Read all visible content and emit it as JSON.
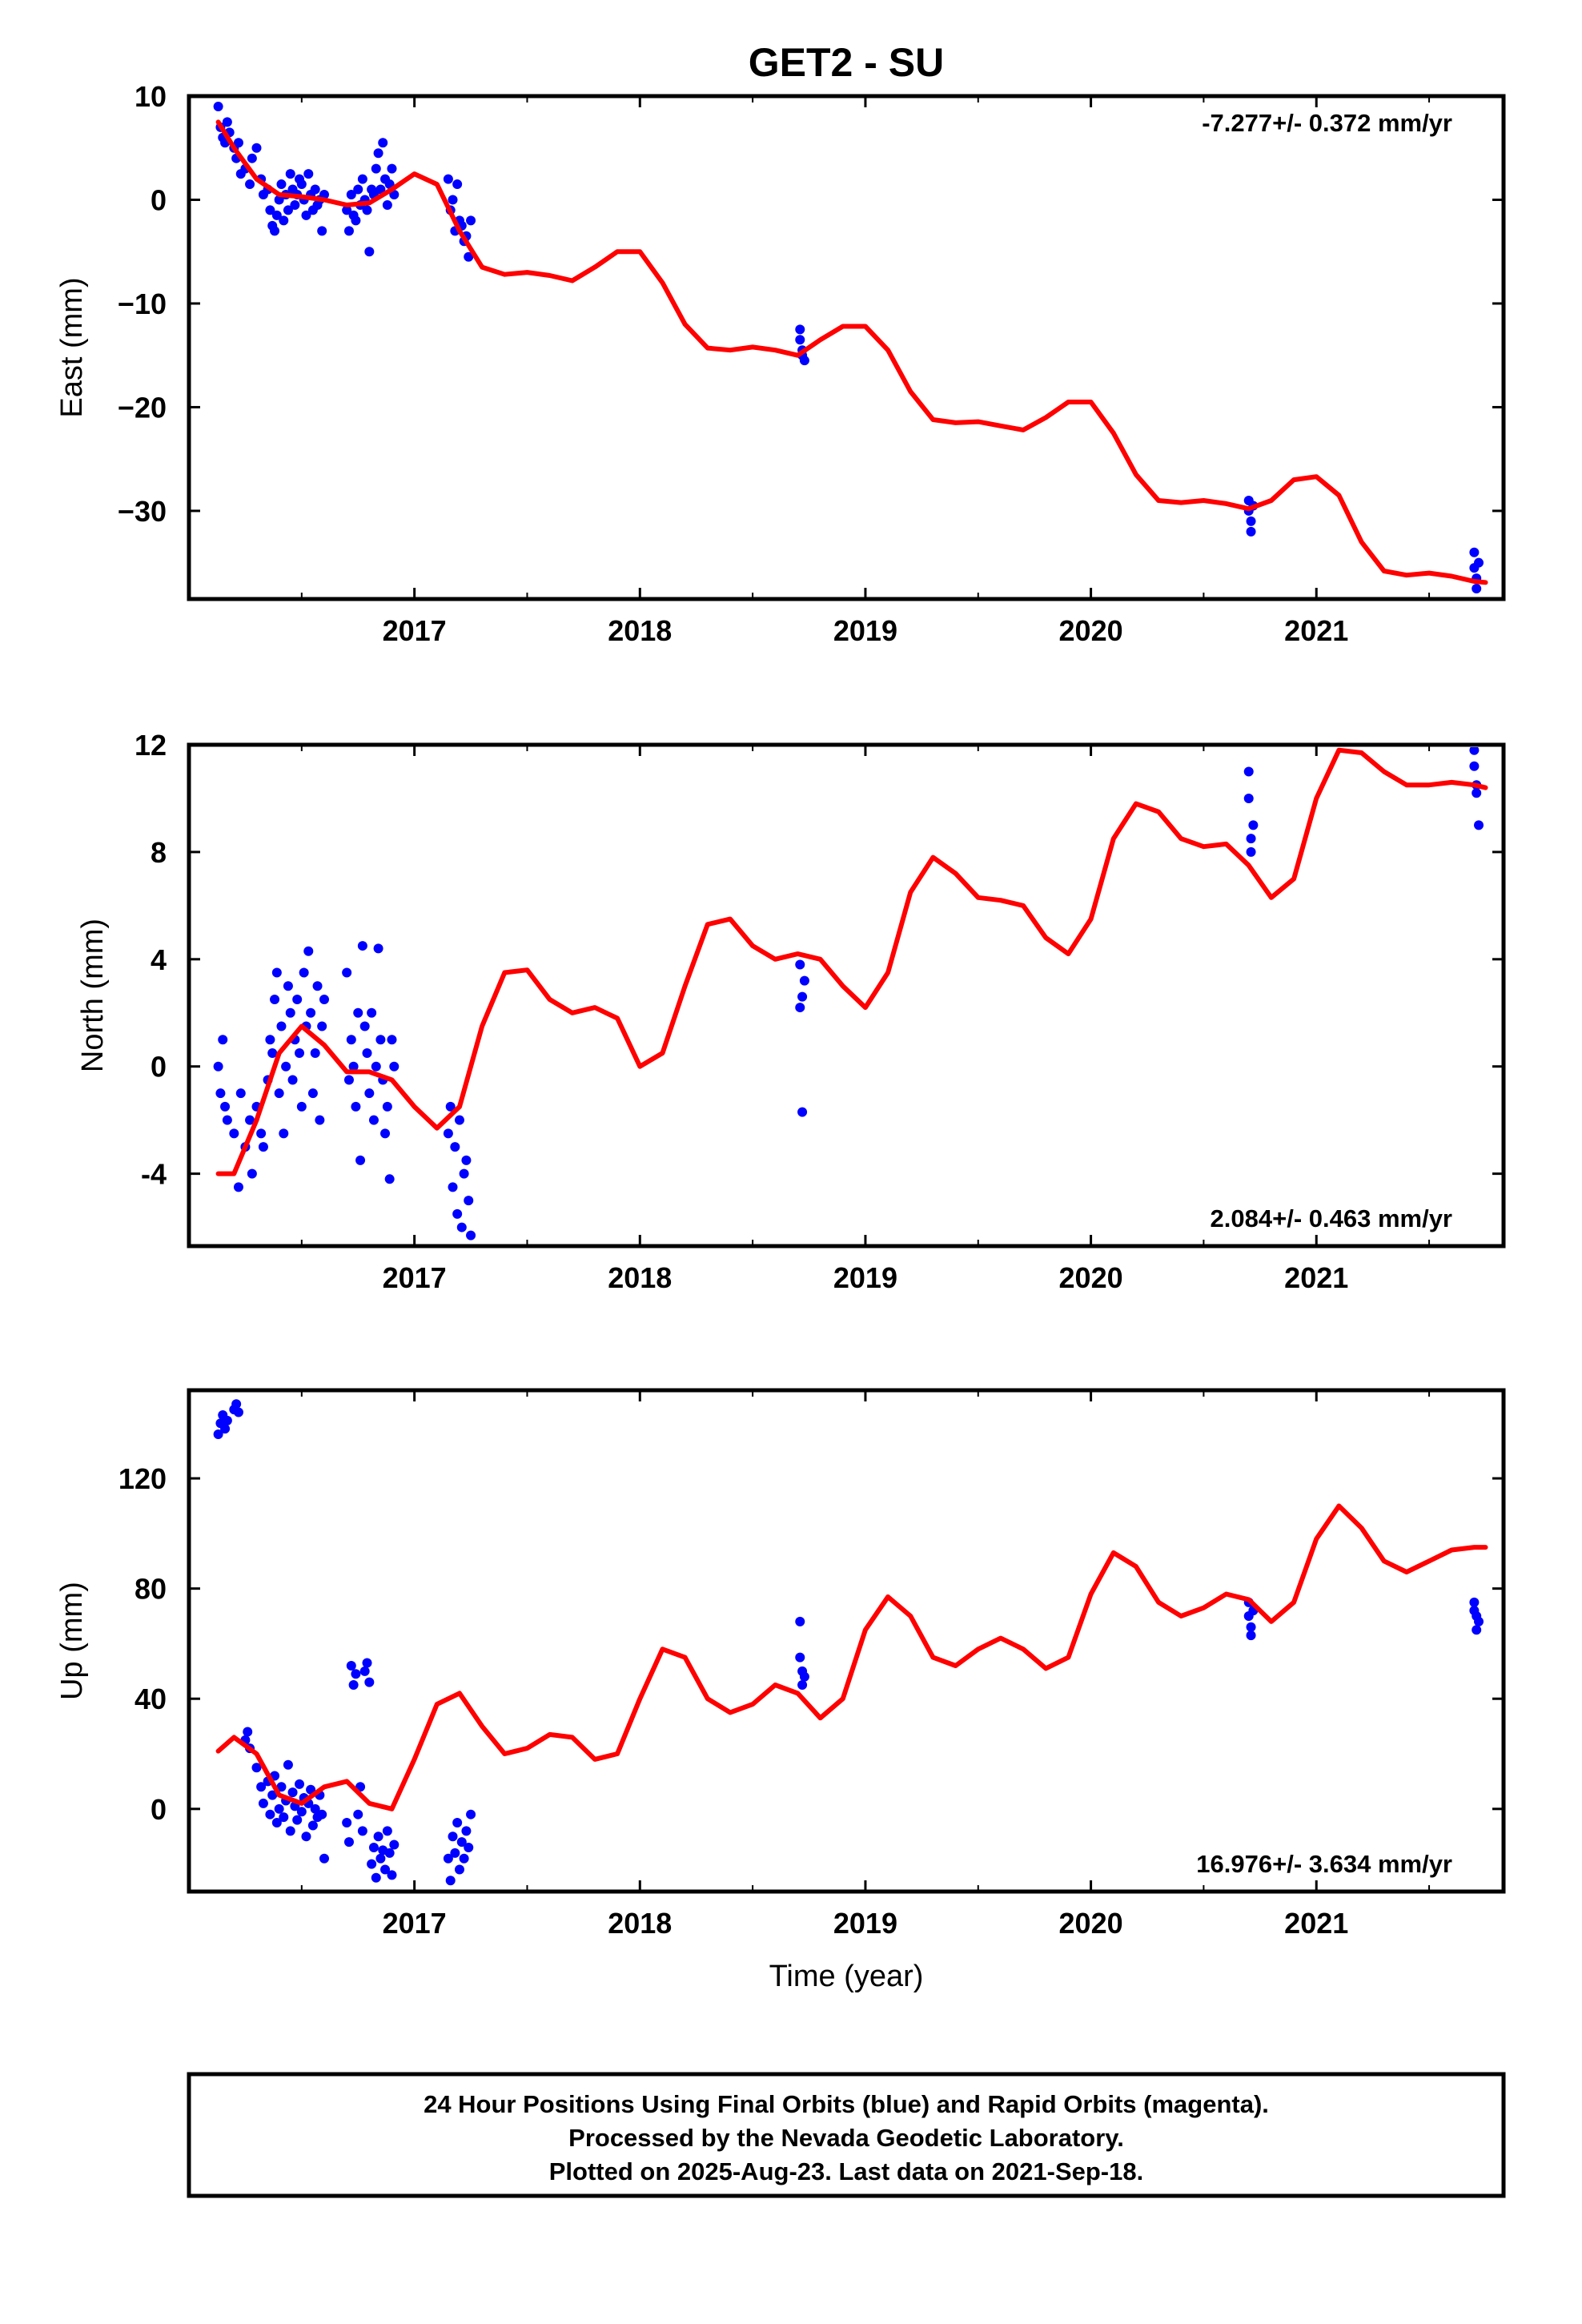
{
  "title": "GET2 - SU",
  "footer": {
    "line1": "24 Hour Positions Using Final Orbits (blue) and Rapid Orbits (magenta).",
    "line2": "Processed by the Nevada Geodetic Laboratory.",
    "line3": "Plotted on 2025-Aug-23. Last data on 2021-Sep-18."
  },
  "colors": {
    "data": "#0000ff",
    "model": "#ff0000",
    "frame": "#000000"
  },
  "chart_data": [
    {
      "type": "scatter",
      "ylabel": "East (mm)",
      "xlabel": "",
      "rate_label": "-7.277+/- 0.372 mm/yr",
      "rate_position": "top-right",
      "xlim": [
        2016.0,
        2021.83
      ],
      "ylim": [
        -38.5,
        10
      ],
      "xticks": [
        2017,
        2018,
        2019,
        2020,
        2021
      ],
      "yticks": [
        10,
        0,
        -10,
        -20,
        -30
      ],
      "ytick_labels": [
        "10",
        "0",
        "−10",
        "−20",
        "−30"
      ],
      "series": [
        {
          "kind": "points",
          "x": [
            2016.13,
            2016.14,
            2016.15,
            2016.16,
            2016.17,
            2016.18,
            2016.2,
            2016.21,
            2016.22,
            2016.23,
            2016.25,
            2016.27,
            2016.28,
            2016.3,
            2016.32,
            2016.33,
            2016.35,
            2016.36,
            2016.37,
            2016.38,
            2016.39,
            2016.4,
            2016.41,
            2016.42,
            2016.43,
            2016.44,
            2016.45,
            2016.46,
            2016.47,
            2016.48,
            2016.49,
            2016.5,
            2016.51,
            2016.52,
            2016.53,
            2016.54,
            2016.55,
            2016.56,
            2016.57,
            2016.58,
            2016.59,
            2016.6,
            2016.7,
            2016.71,
            2016.72,
            2016.73,
            2016.74,
            2016.75,
            2016.76,
            2016.77,
            2016.78,
            2016.79,
            2016.8,
            2016.81,
            2016.82,
            2016.83,
            2016.84,
            2016.85,
            2016.86,
            2016.87,
            2016.88,
            2016.89,
            2016.9,
            2016.91,
            2017.15,
            2017.16,
            2017.17,
            2017.18,
            2017.19,
            2017.2,
            2017.21,
            2017.22,
            2017.23,
            2017.24,
            2017.25,
            2018.71,
            2018.71,
            2018.72,
            2018.72,
            2018.73,
            2020.7,
            2020.7,
            2020.71,
            2020.71,
            2020.72,
            2021.7,
            2021.7,
            2021.71,
            2021.71,
            2021.72
          ],
          "y": [
            9.0,
            7.0,
            6.0,
            5.5,
            7.5,
            6.5,
            5.0,
            4.0,
            5.5,
            2.5,
            3.0,
            1.5,
            4.0,
            5.0,
            2.0,
            0.5,
            1.0,
            -1.0,
            -2.5,
            -3.0,
            -1.5,
            0.0,
            1.5,
            -2.0,
            0.5,
            -1.0,
            2.5,
            1.0,
            -0.5,
            0.5,
            2.0,
            1.5,
            0.0,
            -1.5,
            2.5,
            0.5,
            -1.0,
            1.0,
            -0.5,
            0.0,
            -3.0,
            0.5,
            -1.0,
            -3.0,
            0.5,
            -1.5,
            -2.0,
            1.0,
            -0.5,
            2.0,
            0.0,
            -1.0,
            -5.0,
            1.0,
            0.5,
            3.0,
            4.5,
            1.0,
            5.5,
            2.0,
            -0.5,
            1.5,
            3.0,
            0.5,
            2.0,
            -1.0,
            0.0,
            -3.0,
            1.5,
            -2.0,
            -2.5,
            -4.0,
            -3.5,
            -5.5,
            -2.0,
            -12.5,
            -13.5,
            -14.5,
            -15.0,
            -15.5,
            -29.0,
            -30.0,
            -31.0,
            -32.0,
            -29.5,
            -34.0,
            -35.5,
            -36.5,
            -37.5,
            -35.0
          ]
        },
        {
          "kind": "model",
          "x": [
            2016.13,
            2016.2,
            2016.3,
            2016.4,
            2016.5,
            2016.6,
            2016.7,
            2016.8,
            2016.9,
            2017.0,
            2017.1,
            2017.2,
            2017.3,
            2017.4,
            2017.5,
            2017.6,
            2017.7,
            2017.8,
            2017.9,
            2018.0,
            2018.1,
            2018.2,
            2018.3,
            2018.4,
            2018.5,
            2018.6,
            2018.7,
            2018.8,
            2018.9,
            2019.0,
            2019.1,
            2019.2,
            2019.3,
            2019.4,
            2019.5,
            2019.6,
            2019.7,
            2019.8,
            2019.9,
            2020.0,
            2020.1,
            2020.2,
            2020.3,
            2020.4,
            2020.5,
            2020.6,
            2020.7,
            2020.8,
            2020.9,
            2021.0,
            2021.1,
            2021.2,
            2021.3,
            2021.4,
            2021.5,
            2021.6,
            2021.7,
            2021.75
          ],
          "y": [
            7.5,
            5.0,
            2.0,
            0.5,
            0.3,
            0.0,
            -0.5,
            -0.3,
            1.0,
            2.5,
            1.5,
            -3.0,
            -6.5,
            -7.2,
            -7.0,
            -7.3,
            -7.8,
            -6.5,
            -5.0,
            -5.0,
            -8.0,
            -12.0,
            -14.3,
            -14.5,
            -14.2,
            -14.5,
            -15.0,
            -13.5,
            -12.2,
            -12.2,
            -14.5,
            -18.5,
            -21.2,
            -21.5,
            -21.4,
            -21.8,
            -22.2,
            -21.0,
            -19.5,
            -19.5,
            -22.5,
            -26.5,
            -29.0,
            -29.2,
            -29.0,
            -29.3,
            -29.8,
            -29.0,
            -27.0,
            -26.7,
            -28.5,
            -33.0,
            -35.8,
            -36.2,
            -36.0,
            -36.3,
            -36.8,
            -36.9
          ]
        }
      ]
    },
    {
      "type": "scatter",
      "ylabel": "North (mm)",
      "xlabel": "",
      "rate_label": "2.084+/- 0.463 mm/yr",
      "rate_position": "bottom-right",
      "xlim": [
        2016.0,
        2021.83
      ],
      "ylim": [
        -6.7,
        12
      ],
      "xticks": [
        2017,
        2018,
        2019,
        2020,
        2021
      ],
      "yticks": [
        12,
        8,
        4,
        0,
        -4
      ],
      "ytick_labels": [
        "12",
        "8",
        "4",
        "0",
        "-4"
      ],
      "series": [
        {
          "kind": "points",
          "x": [
            2016.13,
            2016.14,
            2016.15,
            2016.16,
            2016.17,
            2016.2,
            2016.22,
            2016.23,
            2016.25,
            2016.27,
            2016.28,
            2016.3,
            2016.32,
            2016.33,
            2016.35,
            2016.36,
            2016.37,
            2016.38,
            2016.39,
            2016.4,
            2016.41,
            2016.42,
            2016.43,
            2016.44,
            2016.45,
            2016.46,
            2016.47,
            2016.48,
            2016.49,
            2016.5,
            2016.51,
            2016.52,
            2016.53,
            2016.54,
            2016.55,
            2016.56,
            2016.57,
            2016.58,
            2016.59,
            2016.6,
            2016.7,
            2016.71,
            2016.72,
            2016.73,
            2016.74,
            2016.75,
            2016.76,
            2016.77,
            2016.78,
            2016.79,
            2016.8,
            2016.81,
            2016.82,
            2016.83,
            2016.84,
            2016.85,
            2016.86,
            2016.87,
            2016.88,
            2016.89,
            2016.9,
            2016.91,
            2017.15,
            2017.16,
            2017.17,
            2017.18,
            2017.19,
            2017.2,
            2017.21,
            2017.22,
            2017.23,
            2017.24,
            2017.25,
            2018.71,
            2018.71,
            2018.72,
            2018.72,
            2018.73,
            2020.7,
            2020.7,
            2020.71,
            2020.71,
            2020.72,
            2021.7,
            2021.7,
            2021.71,
            2021.71,
            2021.72
          ],
          "y": [
            0.0,
            -1.0,
            1.0,
            -1.5,
            -2.0,
            -2.5,
            -4.5,
            -1.0,
            -3.0,
            -2.0,
            -4.0,
            -1.5,
            -2.5,
            -3.0,
            -0.5,
            1.0,
            0.5,
            2.5,
            3.5,
            -1.0,
            1.5,
            -2.5,
            0.0,
            3.0,
            2.0,
            -0.5,
            1.0,
            2.5,
            0.5,
            -1.5,
            3.5,
            1.5,
            4.3,
            2.0,
            -1.0,
            0.5,
            3.0,
            -2.0,
            1.5,
            2.5,
            3.5,
            -0.5,
            1.0,
            0.0,
            -1.5,
            2.0,
            -3.5,
            4.5,
            1.5,
            0.5,
            -1.0,
            2.0,
            -2.0,
            0.0,
            4.4,
            1.0,
            -0.5,
            -2.5,
            -1.5,
            -4.2,
            1.0,
            0.0,
            -2.5,
            -1.5,
            -4.5,
            -3.0,
            -5.5,
            -2.0,
            -6.0,
            -4.0,
            -3.5,
            -5.0,
            -6.3,
            3.8,
            2.2,
            2.6,
            -1.7,
            3.2,
            11.0,
            10.0,
            8.5,
            8.0,
            9.0,
            11.8,
            11.2,
            10.5,
            10.2,
            9.0
          ]
        },
        {
          "kind": "model",
          "x": [
            2016.13,
            2016.2,
            2016.3,
            2016.4,
            2016.5,
            2016.6,
            2016.7,
            2016.8,
            2016.9,
            2017.0,
            2017.1,
            2017.2,
            2017.3,
            2017.4,
            2017.5,
            2017.6,
            2017.7,
            2017.8,
            2017.9,
            2018.0,
            2018.1,
            2018.2,
            2018.3,
            2018.4,
            2018.5,
            2018.6,
            2018.7,
            2018.8,
            2018.9,
            2019.0,
            2019.1,
            2019.2,
            2019.3,
            2019.4,
            2019.5,
            2019.6,
            2019.7,
            2019.8,
            2019.9,
            2020.0,
            2020.1,
            2020.2,
            2020.3,
            2020.4,
            2020.5,
            2020.6,
            2020.7,
            2020.8,
            2020.9,
            2021.0,
            2021.1,
            2021.2,
            2021.3,
            2021.4,
            2021.5,
            2021.6,
            2021.7,
            2021.75
          ],
          "y": [
            -4.0,
            -4.0,
            -2.0,
            0.5,
            1.5,
            0.8,
            -0.2,
            -0.2,
            -0.5,
            -1.5,
            -2.3,
            -1.5,
            1.5,
            3.5,
            3.6,
            2.5,
            2.0,
            2.2,
            1.8,
            0.0,
            0.5,
            3.0,
            5.3,
            5.5,
            4.5,
            4.0,
            4.2,
            4.0,
            3.0,
            2.2,
            3.5,
            6.5,
            7.8,
            7.2,
            6.3,
            6.2,
            6.0,
            4.8,
            4.2,
            5.5,
            8.5,
            9.8,
            9.5,
            8.5,
            8.2,
            8.3,
            7.5,
            6.3,
            7.0,
            10.0,
            11.8,
            11.7,
            11.0,
            10.5,
            10.5,
            10.6,
            10.5,
            10.4
          ]
        }
      ]
    },
    {
      "type": "scatter",
      "ylabel": "Up (mm)",
      "xlabel": "Time (year)",
      "rate_label": "16.976+/- 3.634 mm/yr",
      "rate_position": "bottom-right",
      "xlim": [
        2016.0,
        2021.83
      ],
      "ylim": [
        -30,
        152
      ],
      "xticks": [
        2017,
        2018,
        2019,
        2020,
        2021
      ],
      "yticks": [
        120,
        80,
        40,
        0
      ],
      "ytick_labels": [
        "120",
        "80",
        "40",
        "0"
      ],
      "series": [
        {
          "kind": "points",
          "x": [
            2016.13,
            2016.14,
            2016.15,
            2016.16,
            2016.17,
            2016.2,
            2016.21,
            2016.22,
            2016.25,
            2016.26,
            2016.27,
            2016.3,
            2016.32,
            2016.33,
            2016.35,
            2016.36,
            2016.37,
            2016.38,
            2016.39,
            2016.4,
            2016.41,
            2016.42,
            2016.43,
            2016.44,
            2016.45,
            2016.46,
            2016.47,
            2016.48,
            2016.49,
            2016.5,
            2016.51,
            2016.52,
            2016.53,
            2016.54,
            2016.55,
            2016.56,
            2016.57,
            2016.58,
            2016.59,
            2016.6,
            2016.7,
            2016.71,
            2016.72,
            2016.73,
            2016.74,
            2016.75,
            2016.76,
            2016.77,
            2016.78,
            2016.79,
            2016.8,
            2016.81,
            2016.82,
            2016.83,
            2016.84,
            2016.85,
            2016.86,
            2016.87,
            2016.88,
            2016.89,
            2016.9,
            2016.91,
            2017.15,
            2017.16,
            2017.17,
            2017.18,
            2017.19,
            2017.2,
            2017.21,
            2017.22,
            2017.23,
            2017.24,
            2017.25,
            2018.71,
            2018.71,
            2018.72,
            2018.72,
            2018.73,
            2020.7,
            2020.7,
            2020.71,
            2020.71,
            2020.72,
            2021.7,
            2021.7,
            2021.71,
            2021.71,
            2021.72
          ],
          "y": [
            136,
            140,
            143,
            138,
            141,
            145,
            147,
            144,
            25,
            28,
            22,
            15,
            8,
            2,
            10,
            -2,
            5,
            12,
            -5,
            0,
            8,
            -3,
            3,
            16,
            -8,
            6,
            1,
            -4,
            9,
            -1,
            4,
            -10,
            2,
            7,
            -6,
            0,
            -3,
            5,
            -2,
            -18,
            -5,
            -12,
            52,
            45,
            49,
            -2,
            8,
            -8,
            50,
            53,
            46,
            -20,
            -14,
            -25,
            -10,
            -18,
            -15,
            -22,
            -8,
            -16,
            -24,
            -13,
            -18,
            -26,
            -10,
            -16,
            -5,
            -22,
            -12,
            -18,
            -8,
            -14,
            -2,
            68,
            55,
            50,
            45,
            48,
            75,
            70,
            66,
            63,
            72,
            75,
            72,
            70,
            65,
            68
          ]
        },
        {
          "kind": "model",
          "x": [
            2016.13,
            2016.2,
            2016.3,
            2016.4,
            2016.5,
            2016.6,
            2016.7,
            2016.8,
            2016.9,
            2017.0,
            2017.1,
            2017.2,
            2017.3,
            2017.4,
            2017.5,
            2017.6,
            2017.7,
            2017.8,
            2017.9,
            2018.0,
            2018.1,
            2018.2,
            2018.3,
            2018.4,
            2018.5,
            2018.6,
            2018.7,
            2018.8,
            2018.9,
            2019.0,
            2019.1,
            2019.2,
            2019.3,
            2019.4,
            2019.5,
            2019.6,
            2019.7,
            2019.8,
            2019.9,
            2020.0,
            2020.1,
            2020.2,
            2020.3,
            2020.4,
            2020.5,
            2020.6,
            2020.7,
            2020.8,
            2020.9,
            2021.0,
            2021.1,
            2021.2,
            2021.3,
            2021.4,
            2021.5,
            2021.6,
            2021.7,
            2021.75
          ],
          "y": [
            21,
            26,
            20,
            5,
            2,
            8,
            10,
            2,
            0,
            18,
            38,
            42,
            30,
            20,
            22,
            27,
            26,
            18,
            20,
            40,
            58,
            55,
            40,
            35,
            38,
            45,
            42,
            33,
            40,
            65,
            77,
            70,
            55,
            52,
            58,
            62,
            58,
            51,
            55,
            78,
            93,
            88,
            75,
            70,
            73,
            78,
            76,
            68,
            75,
            98,
            110,
            102,
            90,
            86,
            90,
            94,
            95,
            95
          ]
        }
      ]
    }
  ]
}
